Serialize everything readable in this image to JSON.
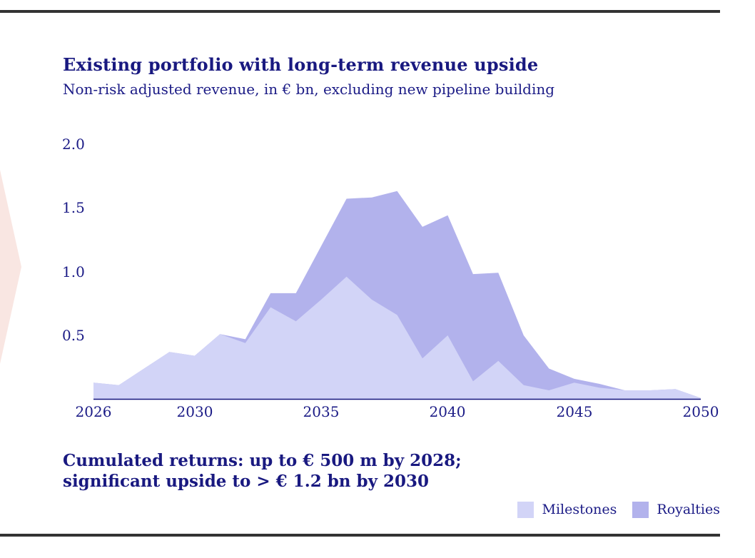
{
  "page": {
    "background": "#ffffff",
    "rule_color": "#333333"
  },
  "decoration": {
    "chevron_color": "#f9e6e2"
  },
  "header": {
    "title": "Existing portfolio with long-term revenue upside",
    "subtitle": "Non-risk adjusted revenue, in € bn, excluding new pipeline building"
  },
  "chart_data": {
    "type": "area",
    "stacked": true,
    "title": "Existing portfolio with long-term revenue upside",
    "subtitle": "Non-risk adjusted revenue, in € bn, excluding new pipeline building",
    "grid": false,
    "legend_position": "bottom-right",
    "axis_color": "#15157d",
    "ylim": [
      0,
      2.0
    ],
    "ytick_values": [
      2.0,
      1.5,
      1.0,
      0.5
    ],
    "ytick_labels": [
      "2.0",
      "1.5",
      "1.0",
      "0.5"
    ],
    "xtick_years": [
      2026,
      2030,
      2035,
      2040,
      2045,
      2050
    ],
    "xtick_labels": [
      "2026",
      "2030",
      "2035",
      "2040",
      "2045",
      "2050"
    ],
    "x": [
      2026,
      2027,
      2028,
      2029,
      2030,
      2031,
      2032,
      2033,
      2034,
      2035,
      2036,
      2037,
      2038,
      2039,
      2040,
      2041,
      2042,
      2043,
      2044,
      2045,
      2046,
      2047,
      2048,
      2049,
      2050
    ],
    "series": [
      {
        "name": "Milestones",
        "color": "#d2d4f7",
        "values": [
          0.13,
          0.11,
          0.24,
          0.37,
          0.34,
          0.51,
          0.44,
          0.72,
          0.61,
          0.78,
          0.96,
          0.78,
          0.66,
          0.32,
          0.5,
          0.14,
          0.3,
          0.11,
          0.07,
          0.13,
          0.09,
          0.07,
          0.07,
          0.08,
          0.01
        ]
      },
      {
        "name": "Royalties",
        "color": "#b2b2ec",
        "values": [
          0,
          0,
          0,
          0,
          0,
          0,
          0.03,
          0.11,
          0.22,
          0.42,
          0.61,
          0.8,
          0.97,
          1.03,
          0.94,
          0.84,
          0.69,
          0.39,
          0.17,
          0.03,
          0.03,
          0,
          0,
          0,
          0
        ]
      }
    ]
  },
  "footer": {
    "line1": "Cumulated returns: up to € 500 m by 2028;",
    "line2": "significant upside to > € 1.2 bn by 2030"
  },
  "legend": {
    "items": [
      {
        "label": "Milestones",
        "color": "#d2d4f7"
      },
      {
        "label": "Royalties",
        "color": "#b2b2ec"
      }
    ]
  }
}
